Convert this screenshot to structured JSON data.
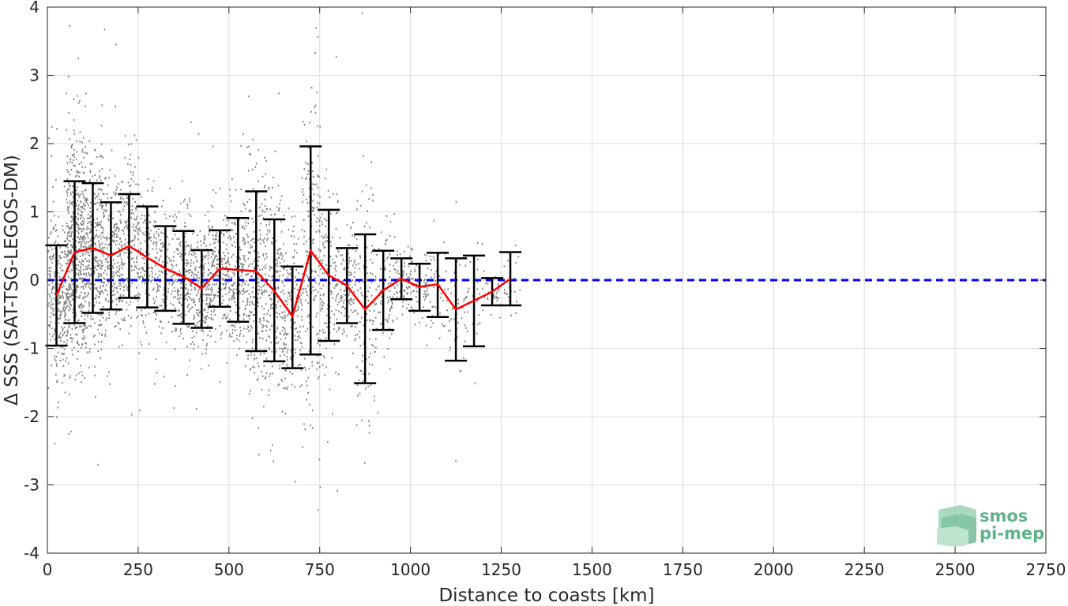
{
  "chart_data": {
    "type": "scatter",
    "xlabel": "Distance to coasts [km]",
    "ylabel": "Δ SSS (SAT-TSG-LEGOS-DM)",
    "xlim": [
      0,
      2750
    ],
    "ylim": [
      -4,
      4
    ],
    "xticks": [
      0,
      250,
      500,
      750,
      1000,
      1250,
      1500,
      1750,
      2000,
      2250,
      2500,
      2750
    ],
    "yticks": [
      -4,
      -3,
      -2,
      -1,
      0,
      1,
      2,
      3,
      4
    ],
    "xtick_labels": [
      "0",
      "250",
      "500",
      "750",
      "1000",
      "1250",
      "1500",
      "1750",
      "2000",
      "2250",
      "2500",
      "2750"
    ],
    "ytick_labels": [
      "-4",
      "-3",
      "-2",
      "-1",
      "0",
      "1",
      "2",
      "3",
      "4"
    ],
    "grid": true,
    "colors": {
      "scatter": "#808080",
      "mean": "#ff0000",
      "errorbar": "#000000",
      "zero_line": "#0000ff",
      "logo": "#5fb38a"
    },
    "scatter_description": "dense cloud of individual Delta SSS points between 0 and ~1280 km, mostly within -1.5 to 2",
    "reference_line": {
      "y": 0,
      "style": "dashed",
      "color": "#0000ff"
    },
    "series": [
      {
        "type": "errorbar",
        "x": [
          25,
          75,
          125,
          175,
          225,
          275,
          325,
          375,
          425,
          475,
          525,
          575,
          625,
          675,
          725,
          775,
          825,
          875,
          925,
          975,
          1025,
          1075,
          1125,
          1175,
          1225,
          1275
        ],
        "mean": [
          -0.22,
          0.41,
          0.47,
          0.36,
          0.5,
          0.33,
          0.17,
          0.05,
          -0.12,
          0.17,
          0.15,
          0.13,
          -0.16,
          -0.53,
          0.43,
          0.07,
          -0.08,
          -0.43,
          -0.15,
          0.02,
          -0.1,
          -0.06,
          -0.43,
          -0.3,
          -0.17,
          0.02
        ],
        "upper": [
          0.51,
          1.45,
          1.42,
          1.14,
          1.26,
          1.08,
          0.79,
          0.72,
          0.44,
          0.73,
          0.91,
          1.3,
          0.89,
          0.2,
          1.96,
          1.03,
          0.47,
          0.67,
          0.43,
          0.32,
          0.24,
          0.4,
          0.32,
          0.36,
          0.03,
          0.41
        ],
        "lower": [
          -0.96,
          -0.63,
          -0.48,
          -0.43,
          -0.26,
          -0.4,
          -0.45,
          -0.64,
          -0.7,
          -0.39,
          -0.61,
          -1.04,
          -1.19,
          -1.29,
          -1.09,
          -0.89,
          -0.63,
          -1.51,
          -0.73,
          -0.28,
          -0.45,
          -0.54,
          -1.18,
          -0.97,
          -0.37,
          -0.37
        ]
      }
    ]
  },
  "logo": {
    "line1": "smos",
    "line2": "pi-mep"
  }
}
